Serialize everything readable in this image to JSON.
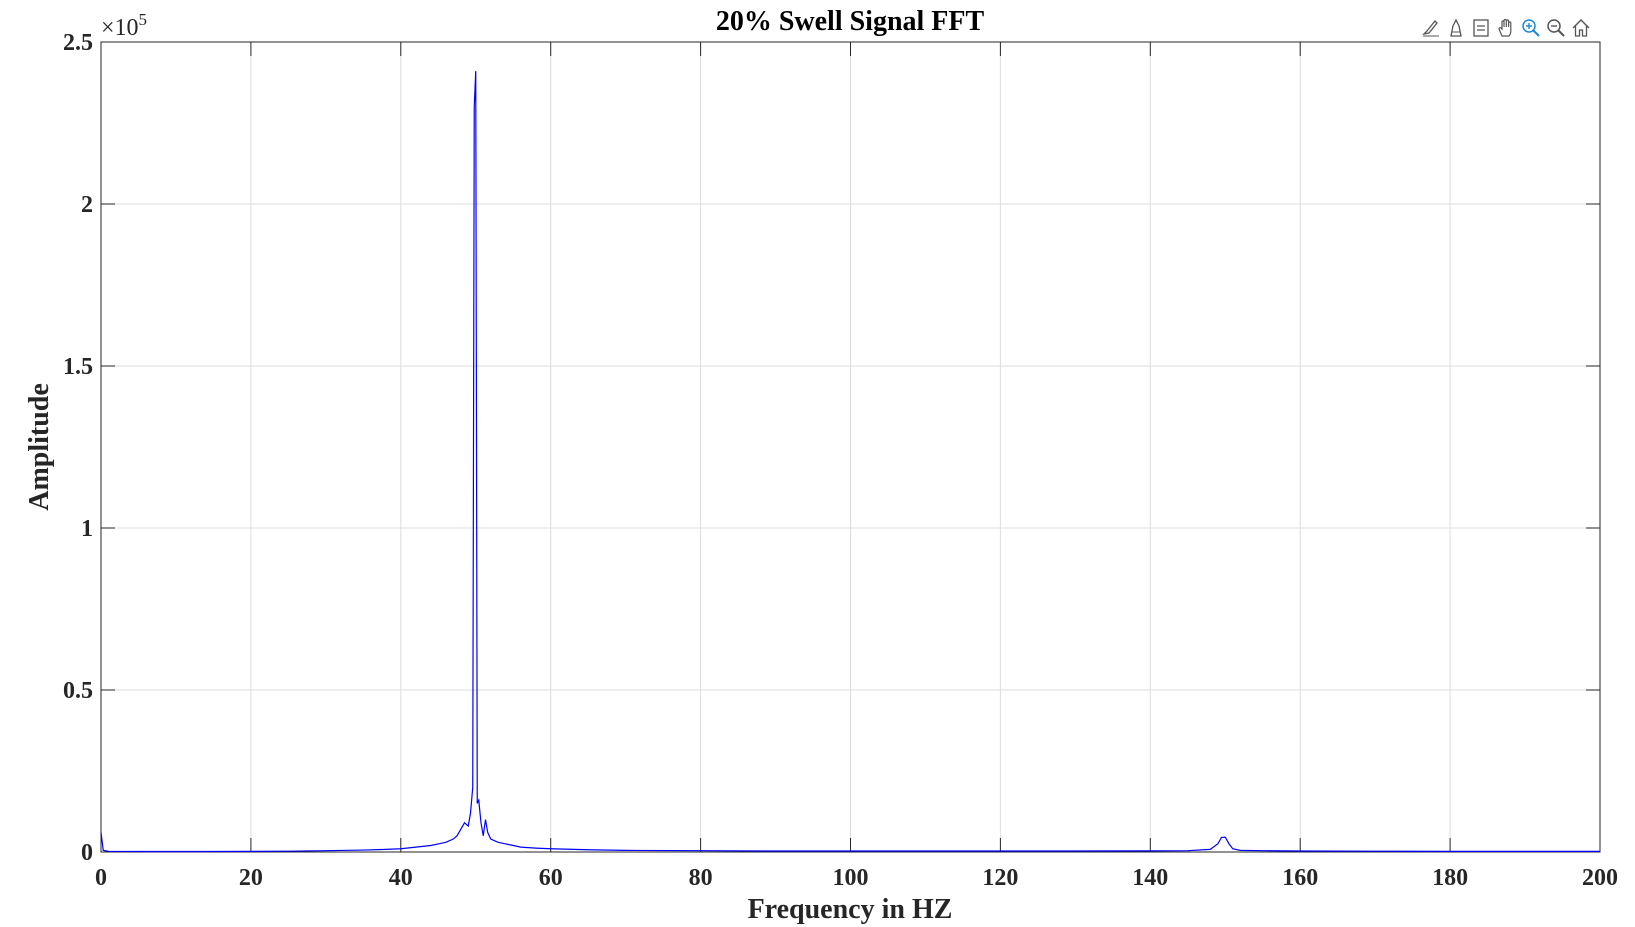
{
  "toolbar": {
    "icons": [
      "brush-icon",
      "data-tips-icon",
      "legend-icon",
      "pan-icon",
      "zoom-in-icon",
      "zoom-out-icon",
      "home-icon"
    ]
  },
  "chart_data": {
    "type": "line",
    "title": "20% Swell Signal FFT",
    "xlabel": "Frequency in HZ",
    "ylabel": "Amplitude",
    "y_exponent_label": "×10",
    "y_exponent_power": "5",
    "xlim": [
      0,
      200
    ],
    "ylim": [
      0,
      250000
    ],
    "x_ticks": [
      0,
      20,
      40,
      60,
      80,
      100,
      120,
      140,
      160,
      180,
      200
    ],
    "x_tick_labels": [
      "0",
      "20",
      "40",
      "60",
      "80",
      "100",
      "120",
      "140",
      "160",
      "180",
      "200"
    ],
    "y_ticks": [
      0,
      50000,
      100000,
      150000,
      200000,
      250000
    ],
    "y_tick_labels": [
      "0",
      "0.5",
      "1",
      "1.5",
      "2",
      "2.5"
    ],
    "grid": true,
    "line_color": "#0000ff",
    "series": [
      {
        "x": [
          0,
          0.3,
          1,
          5,
          10,
          15,
          20,
          25,
          30,
          35,
          38,
          40,
          42,
          44,
          45,
          46,
          47,
          47.5,
          48,
          48.5,
          49,
          49.3,
          49.6,
          49.8,
          50,
          50.2,
          50.4,
          50.7,
          51,
          51.3,
          51.6,
          52,
          52.5,
          53,
          54,
          55,
          56,
          58,
          60,
          65,
          70,
          80,
          90,
          100,
          110,
          120,
          130,
          140,
          145,
          148,
          149,
          149.5,
          150,
          150.5,
          151,
          152,
          155,
          160,
          170,
          180,
          190,
          200
        ],
        "y": [
          6000,
          500,
          200,
          150,
          150,
          150,
          200,
          250,
          400,
          600,
          800,
          1000,
          1500,
          2000,
          2500,
          3000,
          4000,
          5000,
          7000,
          9000,
          8000,
          12000,
          20000,
          230000,
          241000,
          15000,
          16000,
          9000,
          5000,
          10000,
          6000,
          4000,
          3500,
          3000,
          2500,
          2000,
          1500,
          1200,
          1000,
          700,
          500,
          400,
          300,
          300,
          300,
          300,
          300,
          350,
          400,
          800,
          2500,
          4500,
          4600,
          2500,
          1000,
          500,
          400,
          300,
          250,
          200,
          200,
          200
        ]
      }
    ]
  }
}
